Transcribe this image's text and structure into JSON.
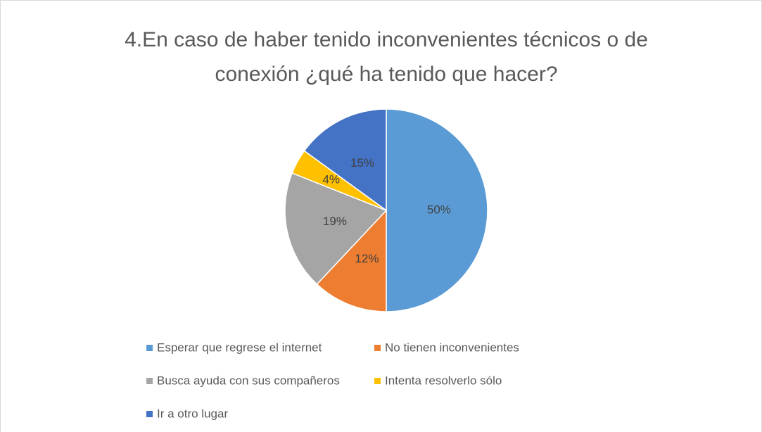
{
  "chart_data": {
    "type": "pie",
    "title": [
      "4.En caso de haber tenido inconvenientes técnicos o de",
      "conexión ¿qué ha tenido que hacer?"
    ],
    "categories": [
      "Esperar que regrese el internet",
      "No tienen inconvenientes",
      "Busca ayuda con sus compañeros",
      "Intenta resolverlo sólo",
      "Ir a otro lugar"
    ],
    "values": [
      50,
      12,
      19,
      4,
      15
    ],
    "value_labels": [
      "50%",
      "12%",
      "19%",
      "4%",
      "15%"
    ],
    "colors": [
      "#5b9bd5",
      "#ed7d31",
      "#a5a5a5",
      "#ffc000",
      "#4472c4"
    ],
    "legend": "bottom"
  }
}
